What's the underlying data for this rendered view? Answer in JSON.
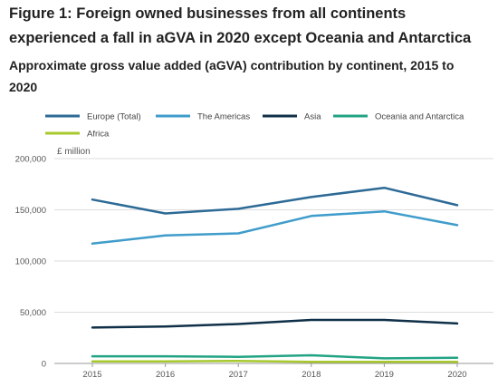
{
  "figure": {
    "title": "Figure 1: Foreign owned businesses from all continents experienced a fall in aGVA in 2020 except Oceania and Antarctica",
    "subtitle": "Approximate gross value added (aGVA) contribution by continent, 2015 to 2020"
  },
  "chart_data": {
    "type": "line",
    "ylabel": "£ million",
    "x": [
      "2015",
      "2016",
      "2017",
      "2018",
      "2019",
      "2020"
    ],
    "ylim": [
      0,
      200000
    ],
    "yticks": [
      0,
      50000,
      100000,
      150000,
      200000
    ],
    "ytick_labels": [
      "0",
      "50,000",
      "100,000",
      "150,000",
      "200,000"
    ],
    "grid": "horizontal",
    "legend_position": "top",
    "series": [
      {
        "name": "Europe (Total)",
        "color": "#2d6a96",
        "values": [
          160000,
          146500,
          151000,
          162500,
          171500,
          154500
        ]
      },
      {
        "name": "The Americas",
        "color": "#3f9ccb",
        "values": [
          117000,
          125000,
          127000,
          144000,
          148500,
          135000
        ]
      },
      {
        "name": "Asia",
        "color": "#0f3048",
        "values": [
          35000,
          36000,
          38500,
          42500,
          42500,
          39000
        ]
      },
      {
        "name": "Oceania and Antarctica",
        "color": "#22a383",
        "values": [
          7000,
          7000,
          6500,
          8000,
          5000,
          5500
        ]
      },
      {
        "name": "Africa",
        "color": "#a8c82e",
        "values": [
          2000,
          2000,
          2500,
          1500,
          1500,
          1500
        ]
      }
    ]
  }
}
